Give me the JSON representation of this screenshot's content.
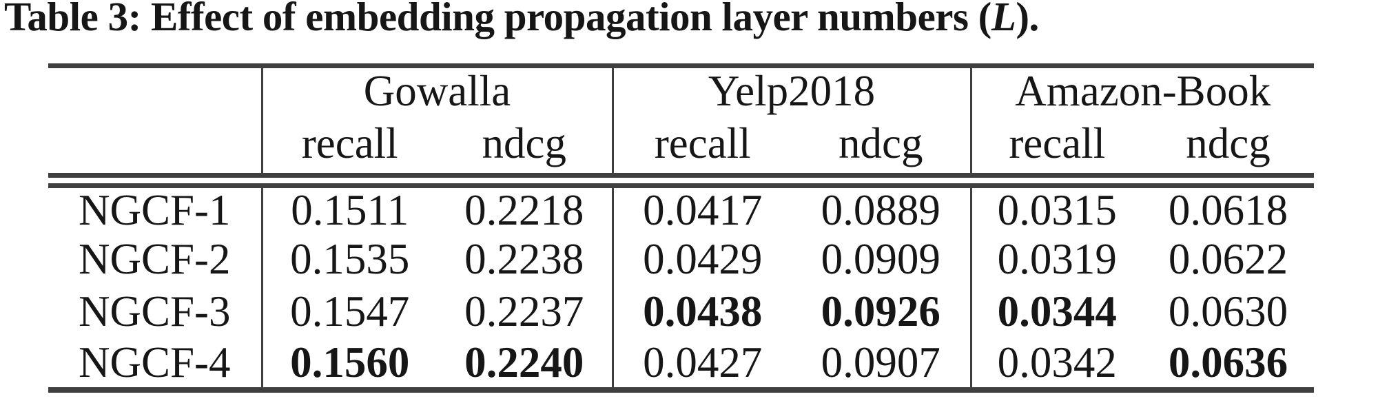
{
  "title": {
    "prefix": "Table 3: Effect of embedding propagation layer numbers (",
    "variable": "L",
    "suffix": ")."
  },
  "colors": {
    "text": "#161616",
    "rule": "#3f3f3f"
  },
  "table": {
    "groups": [
      {
        "label": "Gowalla",
        "sub": [
          "recall",
          "ndcg"
        ]
      },
      {
        "label": "Yelp2018",
        "sub": [
          "recall",
          "ndcg"
        ]
      },
      {
        "label": "Amazon-Book",
        "sub": [
          "recall",
          "ndcg"
        ]
      }
    ],
    "rows": [
      {
        "label": "NGCF-1",
        "values": [
          "0.1511",
          "0.2218",
          "0.0417",
          "0.0889",
          "0.0315",
          "0.0618"
        ],
        "bold": []
      },
      {
        "label": "NGCF-2",
        "values": [
          "0.1535",
          "0.2238",
          "0.0429",
          "0.0909",
          "0.0319",
          "0.0622"
        ],
        "bold": []
      },
      {
        "label": "NGCF-3",
        "values": [
          "0.1547",
          "0.2237",
          "0.0438",
          "0.0926",
          "0.0344",
          "0.0630"
        ],
        "bold": [
          2,
          3,
          4
        ]
      },
      {
        "label": "NGCF-4",
        "values": [
          "0.1560",
          "0.2240",
          "0.0427",
          "0.0907",
          "0.0342",
          "0.0636"
        ],
        "bold": [
          0,
          1,
          5
        ]
      }
    ]
  },
  "chart_data": {
    "type": "table",
    "title": "Table 3: Effect of embedding propagation layer numbers (L).",
    "column_groups": [
      "Gowalla",
      "Yelp2018",
      "Amazon-Book"
    ],
    "metrics": [
      "recall",
      "ndcg"
    ],
    "row_labels": [
      "NGCF-1",
      "NGCF-2",
      "NGCF-3",
      "NGCF-4"
    ],
    "values": [
      [
        0.1511,
        0.2218,
        0.0417,
        0.0889,
        0.0315,
        0.0618
      ],
      [
        0.1535,
        0.2238,
        0.0429,
        0.0909,
        0.0319,
        0.0622
      ],
      [
        0.1547,
        0.2237,
        0.0438,
        0.0926,
        0.0344,
        0.063
      ],
      [
        0.156,
        0.224,
        0.0427,
        0.0907,
        0.0342,
        0.0636
      ]
    ]
  }
}
